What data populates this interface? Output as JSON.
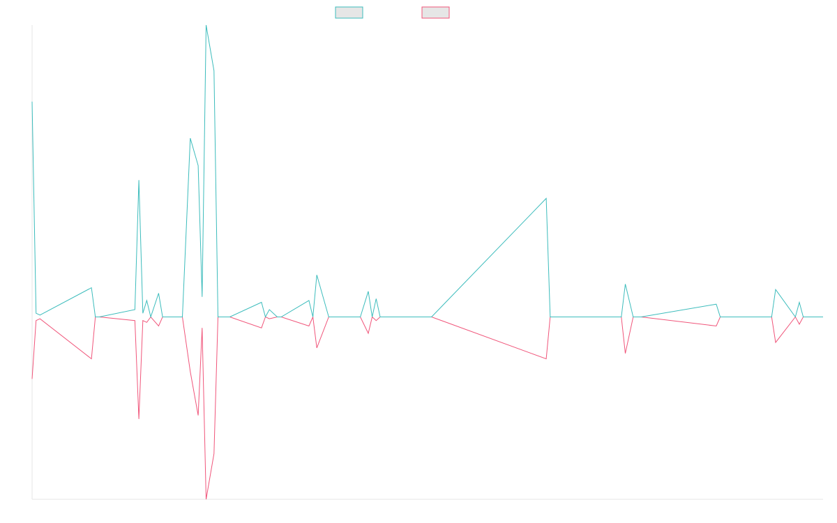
{
  "chart_data": {
    "type": "line",
    "title": "",
    "xlabel": "",
    "ylabel": "",
    "grid": false,
    "legend_position": "top-center",
    "colors": {
      "series_a": "#3cbcbc",
      "series_b": "#f0557a",
      "legend_fill": "#e6e6e6",
      "axis": "#e6e6e6"
    },
    "x": [
      0,
      0.5,
      1,
      7.5,
      8,
      8.5,
      13,
      13.5,
      14,
      14.5,
      15,
      16,
      16.5,
      17,
      17.5,
      19,
      20,
      21,
      21.5,
      22,
      23,
      23.5,
      24,
      25,
      29,
      29.5,
      30,
      31,
      31.5,
      35,
      35.5,
      36,
      37.5,
      38,
      38.5,
      41.5,
      42.5,
      43,
      43.5,
      44,
      44.5,
      48.5,
      49,
      50,
      50.5,
      65,
      65.5,
      66,
      74.5,
      75,
      76,
      76.5,
      77,
      86.5,
      87,
      87.5,
      93.5,
      94,
      96.5,
      97,
      97.5,
      100
    ],
    "ylim": [
      -100,
      160
    ],
    "series": [
      {
        "values": [
          118,
          2,
          1,
          16,
          0,
          0,
          4,
          75,
          2,
          9,
          0,
          13,
          0,
          0,
          0,
          0,
          98,
          83,
          11,
          160,
          135,
          0,
          0,
          0,
          8,
          0,
          4,
          0,
          0,
          9,
          0,
          23,
          0,
          0,
          0,
          0,
          14,
          0,
          10,
          0,
          0,
          0,
          0,
          0,
          0,
          65,
          0,
          0,
          0,
          18,
          0,
          0,
          0,
          7,
          0,
          0,
          0,
          15,
          0,
          8,
          0,
          0
        ]
      },
      {
        "values": [
          -34,
          -2,
          -1,
          -23,
          0,
          0,
          -2,
          -56,
          -2,
          -3,
          0,
          -5,
          0,
          0,
          0,
          0,
          -30,
          -54,
          -6,
          -100,
          -75,
          0,
          0,
          0,
          -6,
          0,
          -1,
          0,
          0,
          -5,
          0,
          -17,
          0,
          0,
          0,
          0,
          -9,
          0,
          -2,
          0,
          0,
          0,
          0,
          0,
          0,
          -23,
          0,
          0,
          0,
          -20,
          0,
          0,
          0,
          -5,
          0,
          0,
          0,
          -14,
          0,
          -4,
          0,
          0
        ]
      }
    ]
  }
}
